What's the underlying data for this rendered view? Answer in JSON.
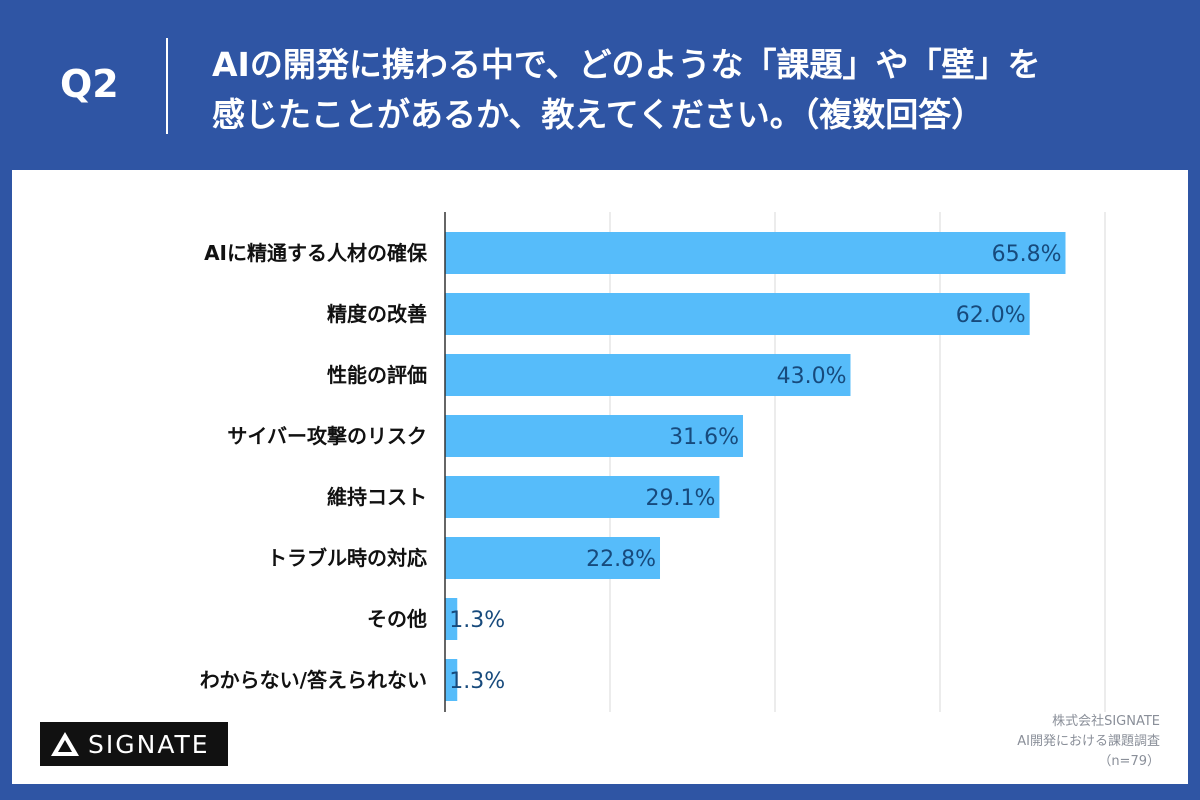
{
  "header": {
    "q_label": "Q2",
    "question_line1": "AIの開発に携わる中で、どのような「課題」や「壁」を",
    "question_line2": "感じたことがあるか、教えてください。（複数回答）"
  },
  "chart_data": {
    "type": "bar",
    "orientation": "horizontal",
    "categories": [
      "AIに精通する人材の確保",
      "精度の改善",
      "性能の評価",
      "サイバー攻撃のリスク",
      "維持コスト",
      "トラブル時の対応",
      "その他",
      "わからない/答えられない"
    ],
    "values": [
      65.8,
      62.0,
      43.0,
      31.6,
      29.1,
      22.8,
      1.3,
      1.3
    ],
    "value_labels": [
      "65.8%",
      "62.0%",
      "43.0%",
      "31.6%",
      "29.1%",
      "22.8%",
      "1.3%",
      "1.3%"
    ],
    "xlim": [
      0,
      70
    ],
    "grid": true,
    "bar_color": "#56bcfa",
    "label_color": "#174a7c"
  },
  "footer": {
    "logo_text": "SIGNATE",
    "source_line1": "株式会社SIGNATE",
    "source_line2": "AI開発における課題調査",
    "source_line3": "（n=79）"
  },
  "colors": {
    "background": "#2f55a4",
    "panel": "#ffffff",
    "grid": "#d9d9d9",
    "axis": "#333333"
  }
}
